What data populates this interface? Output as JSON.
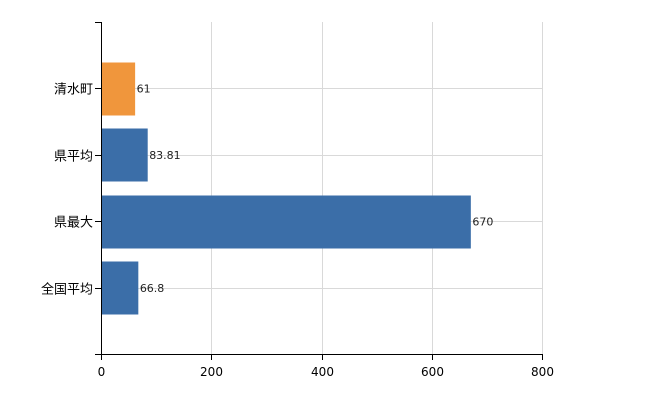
{
  "chart_data": {
    "type": "bar",
    "orientation": "horizontal",
    "title": "",
    "xlabel": "",
    "ylabel": "",
    "categories": [
      "清水町",
      "県平均",
      "県最大",
      "全国平均"
    ],
    "values": [
      61,
      83.81,
      670,
      66.8
    ],
    "value_labels": [
      "61",
      "83.81",
      "670",
      "66.8"
    ],
    "colors": [
      "#f0963c",
      "#3b6ea8",
      "#3b6ea8",
      "#3b6ea8"
    ],
    "xlim": [
      0,
      800
    ],
    "x_ticks": [
      0,
      200,
      400,
      600,
      800
    ],
    "x_tick_labels": [
      "0",
      "200",
      "400",
      "600",
      "800"
    ],
    "grid": true,
    "legend": "none"
  }
}
